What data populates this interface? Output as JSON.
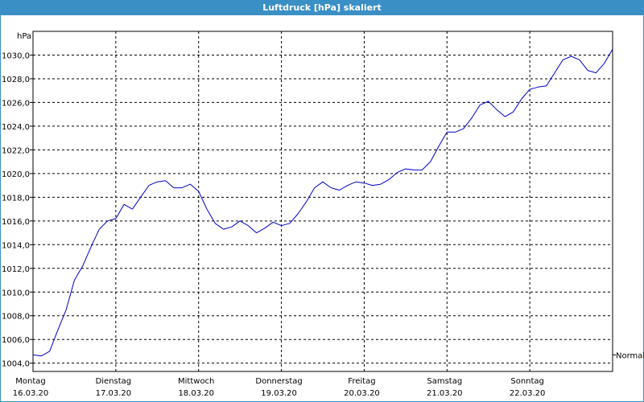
{
  "window": {
    "title": "Luftdruck [hPa] skaliert"
  },
  "colors": {
    "title_bar": "#3a8fc4",
    "series_line": "#0000c8",
    "grid": "#000000",
    "axis": "#000000"
  },
  "chart_data": {
    "type": "line",
    "title": "Luftdruck [hPa] skaliert",
    "ylabel": "hPa",
    "ylim": [
      1003.3,
      1032.0
    ],
    "yticks": [
      1004.0,
      1006.0,
      1008.0,
      1010.0,
      1012.0,
      1014.0,
      1016.0,
      1018.0,
      1020.0,
      1022.0,
      1024.0,
      1026.0,
      1028.0,
      1030.0
    ],
    "ytick_labels": [
      "1004,0",
      "1006,0",
      "1008,0",
      "1010,0",
      "1012,0",
      "1014,0",
      "1016,0",
      "1018,0",
      "1020,0",
      "1022,0",
      "1024,0",
      "1026,0",
      "1028,0",
      "1030,0"
    ],
    "xlim": [
      0,
      7
    ],
    "xticks": [
      {
        "day": "Montag",
        "date": "16.03.20"
      },
      {
        "day": "Dienstag",
        "date": "17.03.20"
      },
      {
        "day": "Mittwoch",
        "date": "18.03.20"
      },
      {
        "day": "Donnerstag",
        "date": "19.03.20"
      },
      {
        "day": "Freitag",
        "date": "20.03.20"
      },
      {
        "day": "Samstag",
        "date": "21.03.20"
      },
      {
        "day": "Sonntag",
        "date": "22.03.20"
      }
    ],
    "grid": true,
    "reference_line": {
      "label": "Normal",
      "value": 1004.7
    },
    "series": [
      {
        "x": [
          0,
          0.1,
          0.2,
          0.3,
          0.4,
          0.5,
          0.6,
          0.7,
          0.8,
          0.9,
          1.0,
          1.1,
          1.2,
          1.3,
          1.4,
          1.5,
          1.6,
          1.7,
          1.8,
          1.9,
          2.0,
          2.1,
          2.2,
          2.3,
          2.4,
          2.5,
          2.6,
          2.7,
          2.8,
          2.9,
          3.0,
          3.1,
          3.2,
          3.3,
          3.4,
          3.5,
          3.6,
          3.7,
          3.8,
          3.9,
          4.0,
          4.1,
          4.2,
          4.3,
          4.4,
          4.5,
          4.6,
          4.7,
          4.8,
          4.9,
          5.0,
          5.1,
          5.2,
          5.3,
          5.4,
          5.5,
          5.6,
          5.7,
          5.8,
          5.9,
          6.0,
          6.1,
          6.2,
          6.3,
          6.4,
          6.5,
          6.6,
          6.7,
          6.8,
          6.9,
          7.0
        ],
        "y": [
          1004.7,
          1004.6,
          1005.0,
          1006.8,
          1008.5,
          1011.0,
          1012.2,
          1013.8,
          1015.3,
          1016.0,
          1016.2,
          1017.4,
          1017.0,
          1018.0,
          1019.0,
          1019.3,
          1019.4,
          1018.8,
          1018.8,
          1019.1,
          1018.5,
          1017.0,
          1015.8,
          1015.3,
          1015.5,
          1016.0,
          1015.6,
          1015.0,
          1015.4,
          1015.9,
          1015.6,
          1015.8,
          1016.6,
          1017.6,
          1018.8,
          1019.3,
          1018.8,
          1018.6,
          1019.0,
          1019.3,
          1019.2,
          1019.0,
          1019.1,
          1019.5,
          1020.1,
          1020.4,
          1020.3,
          1020.3,
          1021.0,
          1022.3,
          1023.5,
          1023.5,
          1023.8,
          1024.7,
          1025.8,
          1026.1,
          1025.4,
          1024.8,
          1025.2,
          1026.3,
          1027.1,
          1027.3,
          1027.4,
          1028.5,
          1029.6,
          1029.9,
          1029.6,
          1028.7,
          1028.5,
          1029.3,
          1030.5
        ]
      }
    ]
  }
}
